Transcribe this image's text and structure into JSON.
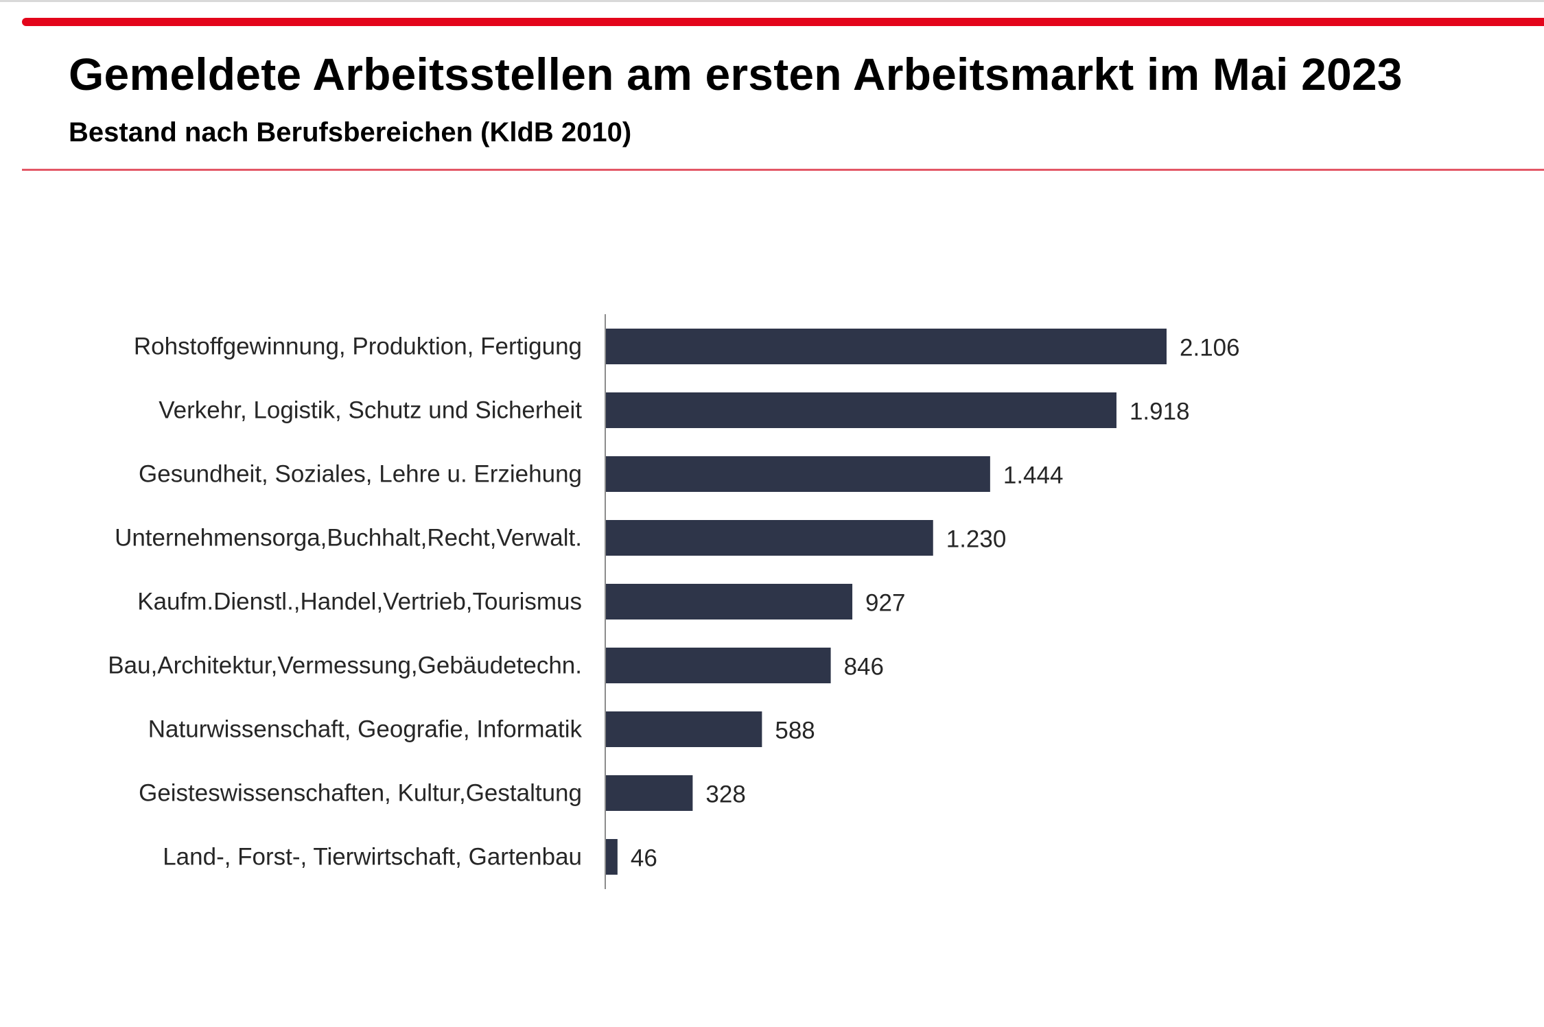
{
  "header": {
    "title": "Gemeldete Arbeitsstellen am ersten Arbeitsmarkt im Mai 2023",
    "subtitle": "Bestand nach Berufsbereichen (KldB 2010)"
  },
  "colors": {
    "accent": "#e3051b",
    "divider": "#e35766",
    "bar": "#2e3549",
    "axis": "#8c8c8c"
  },
  "chart_data": {
    "type": "bar",
    "orientation": "horizontal",
    "categories": [
      "Rohstoffgewinnung, Produktion, Fertigung",
      "Verkehr, Logistik, Schutz und Sicherheit",
      "Gesundheit, Soziales, Lehre u. Erziehung",
      "Unternehmensorga,Buchhalt,Recht,Verwalt.",
      "Kaufm.Dienstl.,Handel,Vertrieb,Tourismus",
      "Bau,Architektur,Vermessung,Gebäudetechn.",
      "Naturwissenschaft, Geografie, Informatik",
      "Geisteswissenschaften, Kultur,Gestaltung",
      "Land-, Forst-, Tierwirtschaft, Gartenbau"
    ],
    "values": [
      2106,
      1918,
      1444,
      1230,
      927,
      846,
      588,
      328,
      46
    ],
    "value_labels": [
      "2.106",
      "1.918",
      "1.444",
      "1.230",
      "927",
      "846",
      "588",
      "328",
      "46"
    ],
    "title": "Gemeldete Arbeitsstellen am ersten Arbeitsmarkt im Mai 2023",
    "subtitle": "Bestand nach Berufsbereichen (KldB 2010)",
    "xlabel": "",
    "ylabel": "",
    "xlim": [
      0,
      2106
    ],
    "grid": false,
    "legend": "none"
  }
}
